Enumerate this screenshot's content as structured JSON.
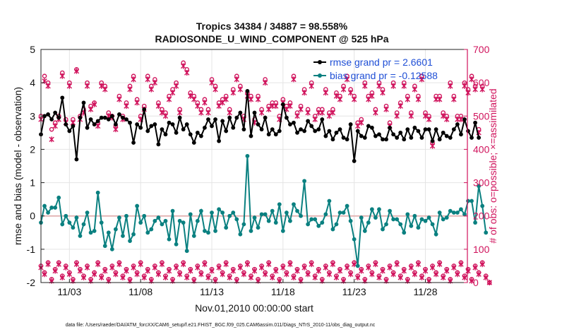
{
  "chart_data": {
    "type": "line",
    "title_line1": "Tropics 34384 / 34887 = 98.558%",
    "title_line2": "RADIOSONDE_U_WIND_COMPONENT @ 525 hPa",
    "xlabel": "Nov.01,2010 00:00:00 start",
    "ylabel_left": "rmse and bias (model - observation)",
    "ylabel_right": "# of obs: o=possible; ×=assimilated",
    "footer": "data file: /Users/raeder/DAI/ATM_forcXX/CAM6_setup/f.e21.FHIST_BGC.f09_025.CAM6assim.011/Diags_NTrS_2010-11/obs_diag_output.nc",
    "xlim": [
      1,
      30.95
    ],
    "ylim_left": [
      -2,
      5
    ],
    "ylim_right": [
      0,
      700
    ],
    "x_ticks": [
      3,
      8,
      13,
      18,
      23,
      28
    ],
    "x_tick_labels": [
      "11/03",
      "11/08",
      "11/13",
      "11/18",
      "11/23",
      "11/28"
    ],
    "y_left_ticks": [
      -2,
      -1,
      0,
      1,
      2,
      3,
      4,
      5
    ],
    "y_right_ticks": [
      0,
      100,
      200,
      300,
      400,
      500,
      600,
      700
    ],
    "zero_line": 0,
    "x_start": 1,
    "x_step": 0.25,
    "colors": {
      "rmse": "#000000",
      "bias": "#0a8080",
      "obs": "#d0135c",
      "zero": "#e0aeae",
      "legend_text": "#1f4fd6"
    },
    "series": [
      {
        "name": "rmse",
        "legend": "rmse grand pr = 2.6601",
        "axis": "left",
        "values": [
          2.45,
          3.0,
          3.05,
          2.9,
          3.1,
          2.95,
          3.55,
          2.75,
          2.55,
          2.7,
          1.7,
          2.95,
          3.4,
          2.65,
          2.9,
          2.75,
          2.85,
          2.95,
          2.95,
          2.9,
          3.0,
          2.75,
          3.05,
          2.95,
          2.9,
          2.8,
          2.2,
          2.75,
          2.65,
          3.2,
          2.55,
          2.7,
          2.75,
          2.15,
          2.6,
          2.45,
          2.8,
          2.75,
          2.5,
          2.95,
          2.6,
          2.75,
          2.45,
          2.2,
          2.5,
          2.4,
          2.65,
          2.9,
          2.7,
          2.9,
          2.25,
          2.85,
          2.55,
          2.95,
          2.65,
          2.95,
          3.1,
          2.6,
          3.75,
          2.4,
          3.1,
          2.75,
          2.6,
          2.95,
          2.45,
          2.6,
          2.45,
          2.55,
          3.35,
          2.95,
          2.75,
          2.8,
          2.5,
          2.6,
          2.55,
          2.85,
          2.7,
          2.55,
          2.6,
          2.9,
          2.4,
          2.55,
          2.3,
          2.5,
          2.6,
          2.35,
          2.3,
          2.75,
          1.65,
          2.55,
          2.4,
          2.35,
          2.7,
          2.65,
          2.4,
          2.45,
          2.3,
          2.3,
          2.65,
          2.45,
          2.35,
          2.5,
          2.3,
          2.6,
          2.35,
          2.65,
          2.55,
          2.35,
          2.6,
          2.6,
          2.25,
          2.6,
          2.3,
          2.5,
          2.4,
          2.35,
          2.6,
          2.75,
          2.45,
          2.9,
          2.55,
          2.35,
          2.8,
          2.35
        ]
      },
      {
        "name": "bias",
        "legend": "bias grand pr = -0.12588",
        "axis": "left",
        "values": [
          -0.2,
          0.3,
          0.1,
          0.25,
          0.25,
          0.55,
          -0.25,
          0.0,
          -0.2,
          -0.35,
          -0.05,
          -0.6,
          -0.25,
          0.1,
          -0.5,
          -0.45,
          0.7,
          -0.2,
          -0.9,
          -0.5,
          -1.0,
          -0.4,
          -0.05,
          -0.6,
          0.0,
          -0.75,
          -0.55,
          0.3,
          -0.2,
          0.0,
          -0.5,
          -0.4,
          -0.15,
          -0.05,
          -0.25,
          -0.15,
          -0.7,
          0.15,
          -0.85,
          -0.15,
          -0.2,
          -1.05,
          0.05,
          -0.6,
          -0.15,
          0.15,
          -0.45,
          -0.5,
          0.1,
          -0.45,
          0.2,
          0.1,
          -0.35,
          0.0,
          0.1,
          -0.1,
          -0.55,
          -0.25,
          1.8,
          -0.45,
          -0.05,
          -0.35,
          0.05,
          0.05,
          -0.15,
          0.15,
          -0.2,
          0.35,
          -0.45,
          0.1,
          -0.15,
          0.35,
          0.15,
          0.0,
          1.05,
          -0.25,
          -0.1,
          -0.1,
          -0.3,
          -0.2,
          0.05,
          0.45,
          -0.4,
          -0.25,
          0.1,
          0.1,
          0.3,
          -0.15,
          -0.7,
          -1.5,
          -0.05,
          -0.45,
          -0.2,
          0.2,
          -0.05,
          0.2,
          -0.4,
          -0.25,
          0.15,
          -0.1,
          -0.1,
          -0.25,
          -0.5,
          0.05,
          -0.3,
          0.0,
          -0.35,
          -0.1,
          -0.15,
          -0.05,
          -0.25,
          -0.55,
          0.1,
          -0.1,
          -0.05,
          0.15,
          0.1,
          0.1,
          0.2,
          0.05,
          0.45,
          0.45,
          -0.2,
          0.9,
          0.3,
          -0.5
        ]
      },
      {
        "name": "obs_possible",
        "axis": "right",
        "values": [
          500,
          620,
          600,
          460,
          480,
          500,
          630,
          490,
          600,
          490,
          640,
          500,
          520,
          600,
          530,
          540,
          480,
          600,
          590,
          510,
          500,
          470,
          560,
          500,
          540,
          590,
          620,
          550,
          500,
          530,
          620,
          590,
          610,
          540,
          520,
          510,
          560,
          580,
          600,
          520,
          660,
          640,
          570,
          560,
          540,
          520,
          550,
          520,
          610,
          590,
          540,
          550,
          560,
          520,
          580,
          620,
          590,
          500,
          570,
          560,
          490,
          560,
          520,
          610,
          530,
          540,
          540,
          500,
          550,
          530,
          540,
          620,
          510,
          530,
          580,
          520,
          600,
          500,
          520,
          520,
          580,
          510,
          520,
          570,
          560,
          590,
          620,
          580,
          560,
          480,
          490,
          600,
          560,
          570,
          520,
          600,
          580,
          530,
          480,
          600,
          510,
          540,
          600,
          560,
          510,
          590,
          560,
          620,
          510,
          500,
          420,
          560,
          560,
          510,
          500,
          600,
          560,
          500,
          500,
          600,
          580,
          620,
          590,
          460,
          590
        ]
      },
      {
        "name": "obs_assimilated",
        "axis": "right",
        "values": [
          490,
          605,
          590,
          430,
          470,
          490,
          620,
          480,
          590,
          480,
          635,
          490,
          510,
          590,
          520,
          535,
          470,
          590,
          580,
          500,
          495,
          460,
          550,
          490,
          530,
          580,
          610,
          540,
          490,
          520,
          610,
          580,
          600,
          530,
          510,
          500,
          550,
          570,
          590,
          510,
          650,
          630,
          560,
          550,
          530,
          510,
          540,
          510,
          600,
          580,
          530,
          540,
          550,
          510,
          570,
          610,
          580,
          490,
          560,
          550,
          480,
          550,
          510,
          600,
          520,
          530,
          530,
          490,
          540,
          520,
          530,
          610,
          500,
          520,
          570,
          510,
          590,
          490,
          510,
          510,
          570,
          500,
          510,
          560,
          550,
          580,
          610,
          570,
          550,
          470,
          480,
          590,
          550,
          560,
          510,
          590,
          570,
          520,
          470,
          590,
          500,
          530,
          590,
          550,
          500,
          580,
          550,
          610,
          500,
          490,
          410,
          550,
          550,
          500,
          490,
          590,
          550,
          490,
          490,
          590,
          570,
          610,
          580,
          450,
          580
        ]
      },
      {
        "name": "obs_possible_low",
        "axis": "right",
        "values": [
          50,
          30,
          60,
          10,
          40,
          60,
          20,
          50,
          30,
          10,
          60,
          40,
          20,
          50,
          10,
          30,
          60,
          20,
          40,
          10,
          50,
          30,
          60,
          20,
          40,
          10,
          50,
          30,
          60,
          20,
          40,
          10,
          50,
          30,
          60,
          20,
          40,
          10,
          50,
          30,
          60,
          20,
          40,
          10,
          50,
          30,
          60,
          20,
          40,
          10,
          50,
          30,
          60,
          20,
          40,
          10,
          50,
          30,
          60,
          20,
          40,
          10,
          50,
          30,
          60,
          20,
          40,
          10,
          50,
          30,
          60,
          20,
          40,
          10,
          50,
          30,
          60,
          20,
          40,
          10,
          50,
          30,
          60,
          20,
          40,
          10,
          50,
          30,
          60,
          20,
          40,
          10,
          50,
          30,
          60,
          20,
          40,
          10,
          50,
          30,
          60,
          20,
          40,
          10,
          50,
          30,
          60,
          20,
          40,
          10,
          50,
          30,
          60,
          20,
          40,
          10,
          50,
          30,
          60,
          20,
          40,
          10,
          50,
          30,
          60,
          20,
          0
        ]
      },
      {
        "name": "obs_assimilated_low",
        "axis": "right",
        "values": [
          45,
          25,
          55,
          5,
          35,
          55,
          15,
          45,
          25,
          5,
          55,
          35,
          15,
          45,
          5,
          25,
          55,
          15,
          35,
          5,
          45,
          25,
          55,
          15,
          35,
          5,
          45,
          25,
          55,
          15,
          35,
          5,
          45,
          25,
          55,
          15,
          35,
          5,
          45,
          25,
          55,
          15,
          35,
          5,
          45,
          25,
          55,
          15,
          35,
          5,
          45,
          25,
          55,
          15,
          35,
          5,
          45,
          25,
          55,
          15,
          35,
          5,
          45,
          25,
          55,
          15,
          35,
          5,
          45,
          25,
          55,
          15,
          35,
          5,
          45,
          25,
          55,
          15,
          35,
          5,
          45,
          25,
          55,
          15,
          35,
          5,
          45,
          25,
          55,
          15,
          35,
          5,
          45,
          25,
          55,
          15,
          35,
          5,
          45,
          25,
          55,
          15,
          35,
          5,
          45,
          25,
          55,
          15,
          35,
          5,
          45,
          25,
          55,
          15,
          35,
          5,
          45,
          25,
          55,
          15,
          35,
          5,
          45,
          25,
          55,
          15,
          0
        ]
      }
    ]
  }
}
